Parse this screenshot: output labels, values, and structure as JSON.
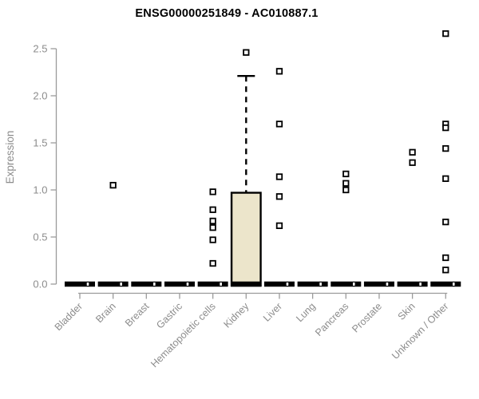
{
  "chart_data": {
    "type": "box",
    "title": "ENSG00000251849 - AC010887.1",
    "ylabel": "Expression",
    "xlabel": "",
    "ylim": [
      0,
      2.5
    ],
    "ytick_labels": [
      "0.0",
      "0.5",
      "1.0",
      "1.5",
      "2.0",
      "2.5"
    ],
    "grid": false,
    "legend": "none",
    "outlier_marker": "open-square",
    "categories": [
      "Bladder",
      "Brain",
      "Breast",
      "Gastric",
      "Hematopoietic cells",
      "Kidney",
      "Liver",
      "Lung",
      "Pancreas",
      "Prostate",
      "Skin",
      "Unknown / Other"
    ],
    "series": [
      {
        "category": "Bladder",
        "q1": 0,
        "median": 0,
        "q3": 0,
        "whisker_low": 0,
        "whisker_high": 0,
        "outliers": [
          0
        ]
      },
      {
        "category": "Brain",
        "q1": 0,
        "median": 0,
        "q3": 0,
        "whisker_low": 0,
        "whisker_high": 0,
        "outliers": [
          0,
          1.05
        ]
      },
      {
        "category": "Breast",
        "q1": 0,
        "median": 0,
        "q3": 0,
        "whisker_low": 0,
        "whisker_high": 0,
        "outliers": [
          0
        ]
      },
      {
        "category": "Gastric",
        "q1": 0,
        "median": 0,
        "q3": 0,
        "whisker_low": 0,
        "whisker_high": 0,
        "outliers": [
          0
        ]
      },
      {
        "category": "Hematopoietic cells",
        "q1": 0,
        "median": 0,
        "q3": 0,
        "whisker_low": 0,
        "whisker_high": 0,
        "outliers": [
          0,
          0.98,
          0.79,
          0.67,
          0.6,
          0.47,
          0.22
        ]
      },
      {
        "category": "Kidney",
        "q1": 0,
        "median": 0,
        "q3": 0.97,
        "whisker_low": 0,
        "whisker_high": 2.21,
        "outliers": [
          2.46
        ]
      },
      {
        "category": "Liver",
        "q1": 0,
        "median": 0,
        "q3": 0,
        "whisker_low": 0,
        "whisker_high": 0,
        "outliers": [
          0,
          2.26,
          1.7,
          1.14,
          0.93,
          0.62
        ]
      },
      {
        "category": "Lung",
        "q1": 0,
        "median": 0,
        "q3": 0,
        "whisker_low": 0,
        "whisker_high": 0,
        "outliers": [
          0
        ]
      },
      {
        "category": "Pancreas",
        "q1": 0,
        "median": 0,
        "q3": 0,
        "whisker_low": 0,
        "whisker_high": 0,
        "outliers": [
          0,
          1.17,
          1.07,
          1.0
        ]
      },
      {
        "category": "Prostate",
        "q1": 0,
        "median": 0,
        "q3": 0,
        "whisker_low": 0,
        "whisker_high": 0,
        "outliers": [
          0
        ]
      },
      {
        "category": "Skin",
        "q1": 0,
        "median": 0,
        "q3": 0,
        "whisker_low": 0,
        "whisker_high": 0,
        "outliers": [
          0,
          1.4,
          1.29
        ]
      },
      {
        "category": "Unknown / Other",
        "q1": 0,
        "median": 0,
        "q3": 0,
        "whisker_low": 0,
        "whisker_high": 0,
        "outliers": [
          0,
          2.66,
          1.7,
          1.66,
          1.44,
          1.12,
          0.66,
          0.28,
          0.15
        ]
      }
    ],
    "colors": {
      "box_fill": "#ece5cb",
      "box_border": "#000000",
      "whisker": "#000000",
      "outlier": "#000000",
      "axis": "#9b9b9b",
      "tick_label": "#8c8c8c",
      "title": "#000000",
      "background": "#ffffff"
    }
  }
}
